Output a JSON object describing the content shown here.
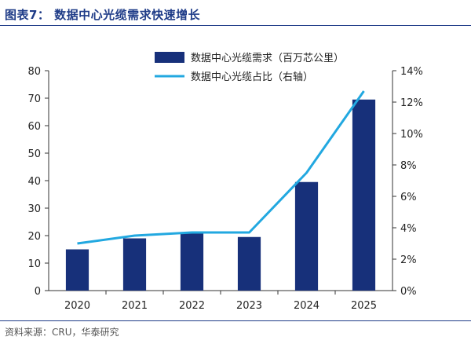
{
  "title": "图表7：  数据中心光缆需求快速增长",
  "source": "资料来源：CRU，华泰研究",
  "colors": {
    "bar": "#17307a",
    "line": "#22a8e0",
    "title": "#1f3c88"
  },
  "chart_data": {
    "type": "bar",
    "categories": [
      "2020",
      "2021",
      "2022",
      "2023",
      "2024",
      "2025"
    ],
    "series": [
      {
        "name": "数据中心光缆需求（百万芯公里）",
        "type": "bar",
        "axis": "left",
        "values": [
          15,
          19,
          21,
          19.5,
          39.5,
          69.5
        ]
      },
      {
        "name": "数据中心光缆占比（右轴）",
        "type": "line",
        "axis": "right",
        "values": [
          3.0,
          3.5,
          3.7,
          3.7,
          7.5,
          12.7
        ]
      }
    ],
    "ylim_left": [
      0,
      80
    ],
    "yticks_left": [
      "0",
      "10",
      "20",
      "30",
      "40",
      "50",
      "60",
      "70",
      "80"
    ],
    "ylim_right": [
      0,
      14
    ],
    "yticks_right": [
      "0%",
      "2%",
      "4%",
      "6%",
      "8%",
      "10%",
      "12%",
      "14%"
    ],
    "grid": false,
    "legend_position": "top"
  }
}
